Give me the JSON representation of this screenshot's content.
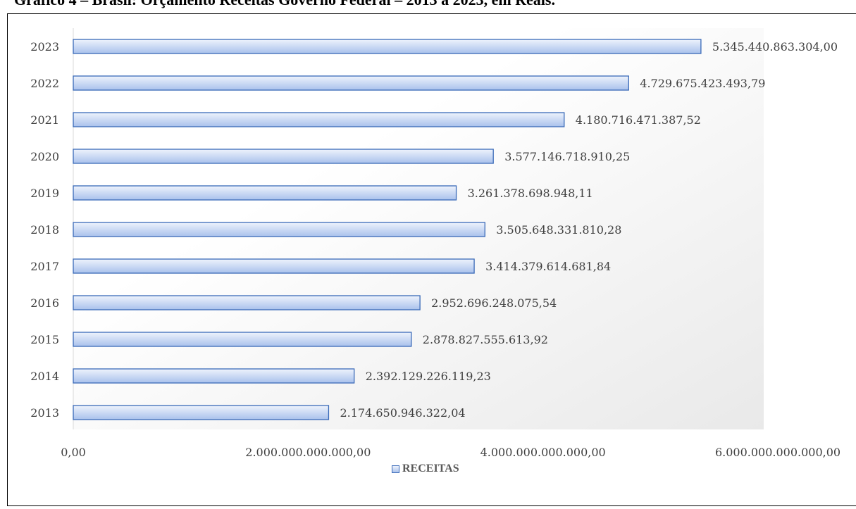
{
  "chart_data": {
    "type": "bar",
    "orientation": "horizontal",
    "title": "Gráfico 4 – Brasil: Orçamento Receitas Governo Federal – 2013 a 2023, em Reais.",
    "categories": [
      "2013",
      "2014",
      "2015",
      "2016",
      "2017",
      "2018",
      "2019",
      "2020",
      "2021",
      "2022",
      "2023"
    ],
    "values": [
      2174650946322.04,
      2392129226119.23,
      2878827555613.92,
      2952696248075.54,
      3414379614681.84,
      3505648331810.28,
      3261378698948.11,
      3577146718910.25,
      4180716471387.52,
      4729675423493.79,
      5345440863304.0
    ],
    "value_labels": [
      "2.174.650.946.322,04",
      "2.392.129.226.119,23",
      "2.878.827.555.613,92",
      "2.952.696.248.075,54",
      "3.414.379.614.681,84",
      "3.505.648.331.810,28",
      "3.261.378.698.948,11",
      "3.577.146.718.910,25",
      "4.180.716.471.387,52",
      "4.729.675.423.493,79",
      "5.345.440.863.304,00"
    ],
    "xlim": [
      0,
      6000000000000
    ],
    "x_ticks": [
      0,
      2000000000000,
      4000000000000,
      6000000000000
    ],
    "x_tick_labels": [
      "0,00",
      "2.000.000.000.000,00",
      "4.000.000.000.000,00",
      "6.000.000.000.000,00"
    ],
    "series": [
      {
        "name": "RECEITAS"
      }
    ],
    "legend_position": "bottom",
    "grid": false,
    "colors": {
      "bar_top": "#eef3fc",
      "bar_bottom": "#a9c1ec",
      "bar_border": "#3a6ab8",
      "plot_bg_end": "#e9e9e9"
    }
  }
}
